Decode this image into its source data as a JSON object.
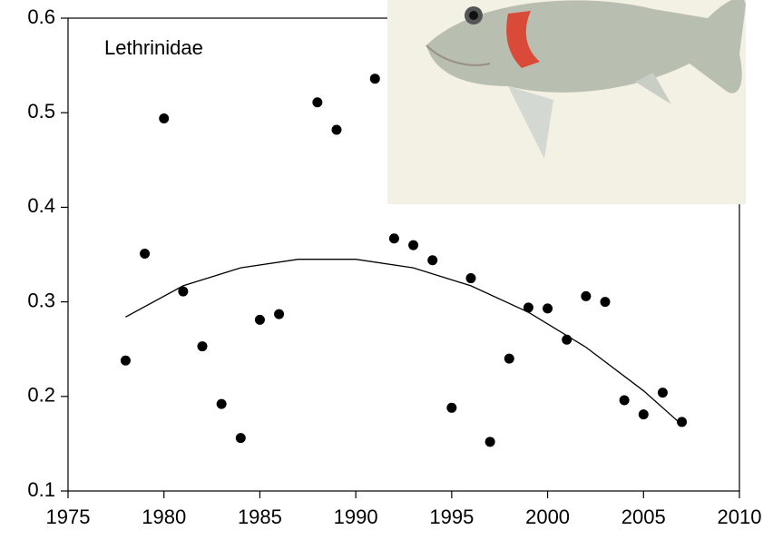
{
  "chart_data": {
    "type": "scatter",
    "annotation": "Lethrinidae",
    "color": "#000000",
    "x": [
      1978,
      1979,
      1980,
      1981,
      1982,
      1983,
      1984,
      1985,
      1986,
      1988,
      1989,
      1991,
      1992,
      1993,
      1994,
      1995,
      1996,
      1997,
      1998,
      1999,
      2000,
      2001,
      2002,
      2003,
      2004,
      2005,
      2006,
      2007
    ],
    "values": [
      0.238,
      0.351,
      0.494,
      0.311,
      0.253,
      0.192,
      0.156,
      0.281,
      0.287,
      0.511,
      0.482,
      0.536,
      0.367,
      0.36,
      0.344,
      0.188,
      0.325,
      0.152,
      0.24,
      0.294,
      0.293,
      0.26,
      0.306,
      0.3,
      0.196,
      0.181,
      0.204,
      0.173
    ],
    "fit": {
      "x": [
        1978,
        1981,
        1984,
        1987,
        1990,
        1993,
        1996,
        1999,
        2002,
        2005,
        2007
      ],
      "values": [
        0.284,
        0.317,
        0.336,
        0.345,
        0.345,
        0.336,
        0.317,
        0.289,
        0.252,
        0.206,
        0.17
      ]
    },
    "xlim": [
      1975,
      2010
    ],
    "xticks": [
      1975,
      1980,
      1985,
      1990,
      1995,
      2000,
      2005,
      2010
    ],
    "ylim": [
      0.1,
      0.6
    ],
    "yticks": [
      0.1,
      0.2,
      0.3,
      0.4,
      0.5,
      0.6
    ]
  }
}
